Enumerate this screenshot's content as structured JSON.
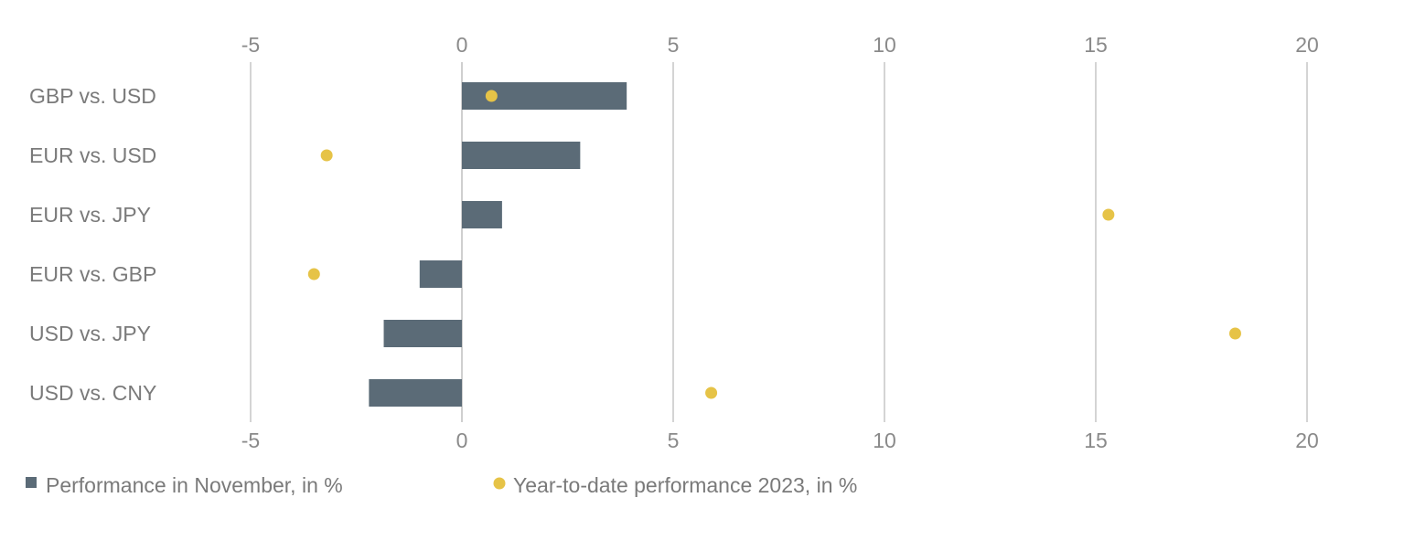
{
  "chart_data": {
    "type": "bar",
    "orientation": "horizontal",
    "categories": [
      "GBP vs. USD",
      "EUR vs. USD",
      "EUR vs. JPY",
      "EUR vs. GBP",
      "USD vs. JPY",
      "USD vs. CNY"
    ],
    "series": [
      {
        "name": "Performance in November, in %",
        "kind": "bar",
        "color": "#5b6b77",
        "values": [
          3.9,
          2.8,
          0.95,
          -1.0,
          -1.85,
          -2.2
        ]
      },
      {
        "name": "Year-to-date performance 2023, in %",
        "kind": "dot",
        "color": "#e6c347",
        "values": [
          0.7,
          -3.2,
          15.3,
          -3.5,
          18.3,
          5.9
        ]
      }
    ],
    "xlim": [
      -5,
      20
    ],
    "xticks": [
      "-5",
      "0",
      "5",
      "10",
      "15",
      "20"
    ],
    "xtick_values": [
      -5,
      0,
      5,
      10,
      15,
      20
    ],
    "grid": true,
    "legend_position": "bottom-left",
    "title": "",
    "xlabel": "",
    "ylabel": ""
  }
}
